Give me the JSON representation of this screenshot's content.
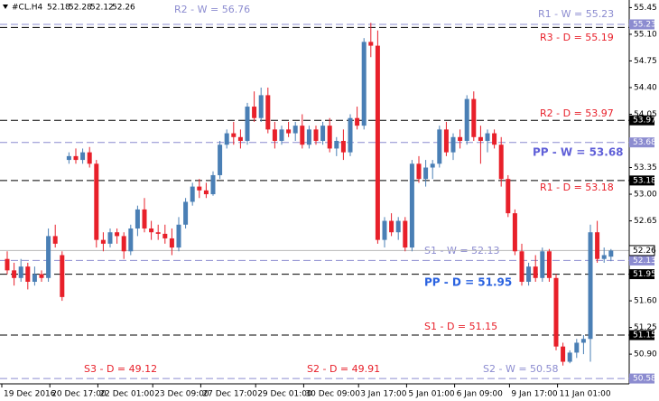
{
  "chart_data": {
    "type": "candlestick",
    "symbol": "#CL.H4",
    "up_color": "#4a7fb5",
    "down_color": "#e8202a",
    "open": [
      52.15,
      52.0,
      51.9,
      52.05,
      51.85,
      51.95,
      51.9,
      52.45,
      52.2,
      53.45,
      53.5,
      53.45,
      53.55,
      53.4,
      52.4,
      52.35,
      52.5,
      52.45,
      52.25,
      52.55,
      52.8,
      52.55,
      52.5,
      52.48,
      52.42,
      52.3,
      52.6,
      52.9,
      53.1,
      53.05,
      53.0,
      53.25,
      53.65,
      53.8,
      53.75,
      53.7,
      54.15,
      54.0,
      54.3,
      53.85,
      53.7,
      53.85,
      53.8,
      53.9,
      53.65,
      53.85,
      53.7,
      53.9,
      53.6,
      53.7,
      53.55,
      54.0,
      53.9,
      55.0,
      54.95,
      52.4,
      52.65,
      52.5,
      52.65,
      52.3,
      53.4,
      53.2,
      53.35,
      53.4,
      53.85,
      53.55,
      53.75,
      53.7,
      54.25,
      53.75,
      53.7,
      53.8,
      53.65,
      53.2,
      52.75,
      52.25,
      51.85,
      52.05,
      51.9,
      52.25,
      51.9,
      51.0,
      50.8,
      50.92,
      51.05,
      51.1,
      52.5,
      52.15,
      52.18
    ],
    "high": [
      52.25,
      52.1,
      52.15,
      52.1,
      52.05,
      52.0,
      52.55,
      52.6,
      52.25,
      53.55,
      53.6,
      53.6,
      53.62,
      53.45,
      52.5,
      52.55,
      52.55,
      52.5,
      52.6,
      52.85,
      52.95,
      52.65,
      52.6,
      52.6,
      52.55,
      52.7,
      52.95,
      53.15,
      53.2,
      53.15,
      53.3,
      53.7,
      53.85,
      53.95,
      53.85,
      54.2,
      54.35,
      54.4,
      54.4,
      53.95,
      53.9,
      53.95,
      53.95,
      54.05,
      53.9,
      53.9,
      53.95,
      54.0,
      53.75,
      53.85,
      54.05,
      54.15,
      55.05,
      55.25,
      55.15,
      52.7,
      52.75,
      52.7,
      52.7,
      53.45,
      53.5,
      53.45,
      53.45,
      53.9,
      53.95,
      53.8,
      53.85,
      54.3,
      54.35,
      53.9,
      53.85,
      53.85,
      53.75,
      53.25,
      52.8,
      52.35,
      52.1,
      52.2,
      52.3,
      52.28,
      51.95,
      51.05,
      50.95,
      51.1,
      51.15,
      52.6,
      52.65,
      52.3,
      52.28
    ],
    "low": [
      51.95,
      51.8,
      51.85,
      51.75,
      51.8,
      51.85,
      51.85,
      52.3,
      51.6,
      53.4,
      53.4,
      53.4,
      53.35,
      52.3,
      52.25,
      52.3,
      52.35,
      52.15,
      52.2,
      52.45,
      52.5,
      52.4,
      52.4,
      52.35,
      52.2,
      52.25,
      52.55,
      52.85,
      52.95,
      52.95,
      52.98,
      53.2,
      53.6,
      53.65,
      53.6,
      53.65,
      53.95,
      53.95,
      53.8,
      53.6,
      53.65,
      53.75,
      53.7,
      53.6,
      53.6,
      53.65,
      53.65,
      53.55,
      53.5,
      53.45,
      53.5,
      53.85,
      53.85,
      54.8,
      52.35,
      52.3,
      52.45,
      52.4,
      52.25,
      52.25,
      53.15,
      53.1,
      53.2,
      53.35,
      53.5,
      53.45,
      53.6,
      53.65,
      53.7,
      53.4,
      53.55,
      53.6,
      53.1,
      52.7,
      52.2,
      51.8,
      51.8,
      51.85,
      51.85,
      51.85,
      50.95,
      50.75,
      50.78,
      50.85,
      50.9,
      50.8,
      52.1,
      52.1,
      52.12
    ],
    "close": [
      52.0,
      51.9,
      52.05,
      51.85,
      51.95,
      51.9,
      52.45,
      52.35,
      51.65,
      53.5,
      53.45,
      53.55,
      53.4,
      52.4,
      52.35,
      52.5,
      52.45,
      52.25,
      52.55,
      52.8,
      52.55,
      52.5,
      52.48,
      52.42,
      52.3,
      52.6,
      52.9,
      53.1,
      53.05,
      53.0,
      53.25,
      53.65,
      53.8,
      53.75,
      53.7,
      54.15,
      54.0,
      54.3,
      53.85,
      53.7,
      53.85,
      53.8,
      53.9,
      53.65,
      53.85,
      53.7,
      53.9,
      53.6,
      53.7,
      53.55,
      54.0,
      53.9,
      55.0,
      54.95,
      52.4,
      52.65,
      52.5,
      52.65,
      52.3,
      53.4,
      53.2,
      53.35,
      53.4,
      53.85,
      53.55,
      53.75,
      53.7,
      54.25,
      53.75,
      53.7,
      53.8,
      53.65,
      53.2,
      52.75,
      52.25,
      51.85,
      52.05,
      51.9,
      52.25,
      51.9,
      51.0,
      50.8,
      50.92,
      51.05,
      51.1,
      52.5,
      52.15,
      52.2,
      52.26
    ],
    "xticks": [
      {
        "value": 0,
        "label": "19 Dec 2016"
      },
      {
        "value": 7,
        "label": "20 Dec 17:00"
      },
      {
        "value": 14,
        "label": "22 Dec 01:00"
      },
      {
        "value": 22,
        "label": "23 Dec 09:00"
      },
      {
        "value": 29,
        "label": "27 Dec 17:00"
      },
      {
        "value": 37,
        "label": "29 Dec 01:00"
      },
      {
        "value": 44,
        "label": "30 Dec 09:00"
      },
      {
        "value": 52,
        "label": "3 Jan 17:00"
      },
      {
        "value": 59,
        "label": "5 Jan 01:00"
      },
      {
        "value": 66,
        "label": "6 Jan 09:00"
      },
      {
        "value": 74,
        "label": "9 Jan 17:00"
      },
      {
        "value": 81,
        "label": "11 Jan 01:00"
      }
    ],
    "ylim": [
      50.51,
      55.55
    ],
    "yticks": [
      {
        "value": 55.45,
        "label": "55.45"
      },
      {
        "value": 55.1,
        "label": "55.10"
      },
      {
        "value": 54.75,
        "label": "54.75"
      },
      {
        "value": 54.4,
        "label": "54.40"
      },
      {
        "value": 54.05,
        "label": "54.05"
      },
      {
        "value": 53.35,
        "label": "53.35"
      },
      {
        "value": 53,
        "label": "53.00"
      },
      {
        "value": 52.65,
        "label": "52.65"
      },
      {
        "value": 51.6,
        "label": "51.60"
      },
      {
        "value": 51.25,
        "label": "51.25"
      },
      {
        "value": 50.9,
        "label": "50.90"
      }
    ],
    "last_price": {
      "value": 52.26,
      "label": "52.26"
    },
    "levels": [
      {
        "label": "R2 - W = 56.76",
        "value": 56.76,
        "line_color": "#8c8cd0",
        "label_color": "#8c8cd0",
        "bold": false
      },
      {
        "label": "R1 - W = 55.23",
        "value": 55.23,
        "line_color": "#8c8cd0",
        "label_color": "#8c8cd0",
        "bold": false
      },
      {
        "label": "R3 - D = 55.19",
        "value": 55.19,
        "line_color": "#000000",
        "label_color": "#e8202a",
        "bold": false
      },
      {
        "label": "R2 - D = 53.97",
        "value": 53.97,
        "line_color": "#000000",
        "label_color": "#e8202a",
        "bold": false
      },
      {
        "label": "PP - W = 53.68",
        "value": 53.68,
        "line_color": "#8c8cd0",
        "label_color": "#6060d8",
        "bold": true
      },
      {
        "label": "R1 - D = 53.18",
        "value": 53.18,
        "line_color": "#000000",
        "label_color": "#e8202a",
        "bold": false
      },
      {
        "label": "S1 - W = 52.13",
        "value": 52.13,
        "line_color": "#8c8cd0",
        "label_color": "#8c8cd0",
        "bold": false
      },
      {
        "label": "PP - D = 51.95",
        "value": 51.95,
        "line_color": "#000000",
        "label_color": "#2a62e0",
        "bold": true
      },
      {
        "label": "S1 - D = 51.15",
        "value": 51.15,
        "line_color": "#000000",
        "label_color": "#e8202a",
        "bold": false
      },
      {
        "label": "S2 - W = 50.58",
        "value": 50.58,
        "line_color": "#8c8cd0",
        "label_color": "#8c8cd0",
        "bold": false
      },
      {
        "label": "S2 - D = 49.91",
        "value": 49.91,
        "line_color": "#000000",
        "label_color": "#e8202a",
        "bold": false
      },
      {
        "label": "S3 - D = 49.12",
        "value": 49.12,
        "line_color": "#000000",
        "label_color": "#e8202a",
        "bold": false
      }
    ],
    "level_tags": [
      {
        "value": 55.23,
        "label": "55.23",
        "color": "#8c8cd0"
      },
      {
        "value": 53.97,
        "label": "53.97",
        "color": "#000000"
      },
      {
        "value": 53.68,
        "label": "53.68",
        "color": "#8c8cd0"
      },
      {
        "value": 53.18,
        "label": "53.18",
        "color": "#000000"
      },
      {
        "value": 52.13,
        "label": "52.13",
        "color": "#8c8cd0"
      },
      {
        "value": 51.95,
        "label": "51.95",
        "color": "#000000"
      },
      {
        "value": 51.15,
        "label": "51.15",
        "color": "#000000"
      },
      {
        "value": 50.58,
        "label": "50.58",
        "color": "#8c8cd0"
      }
    ]
  }
}
